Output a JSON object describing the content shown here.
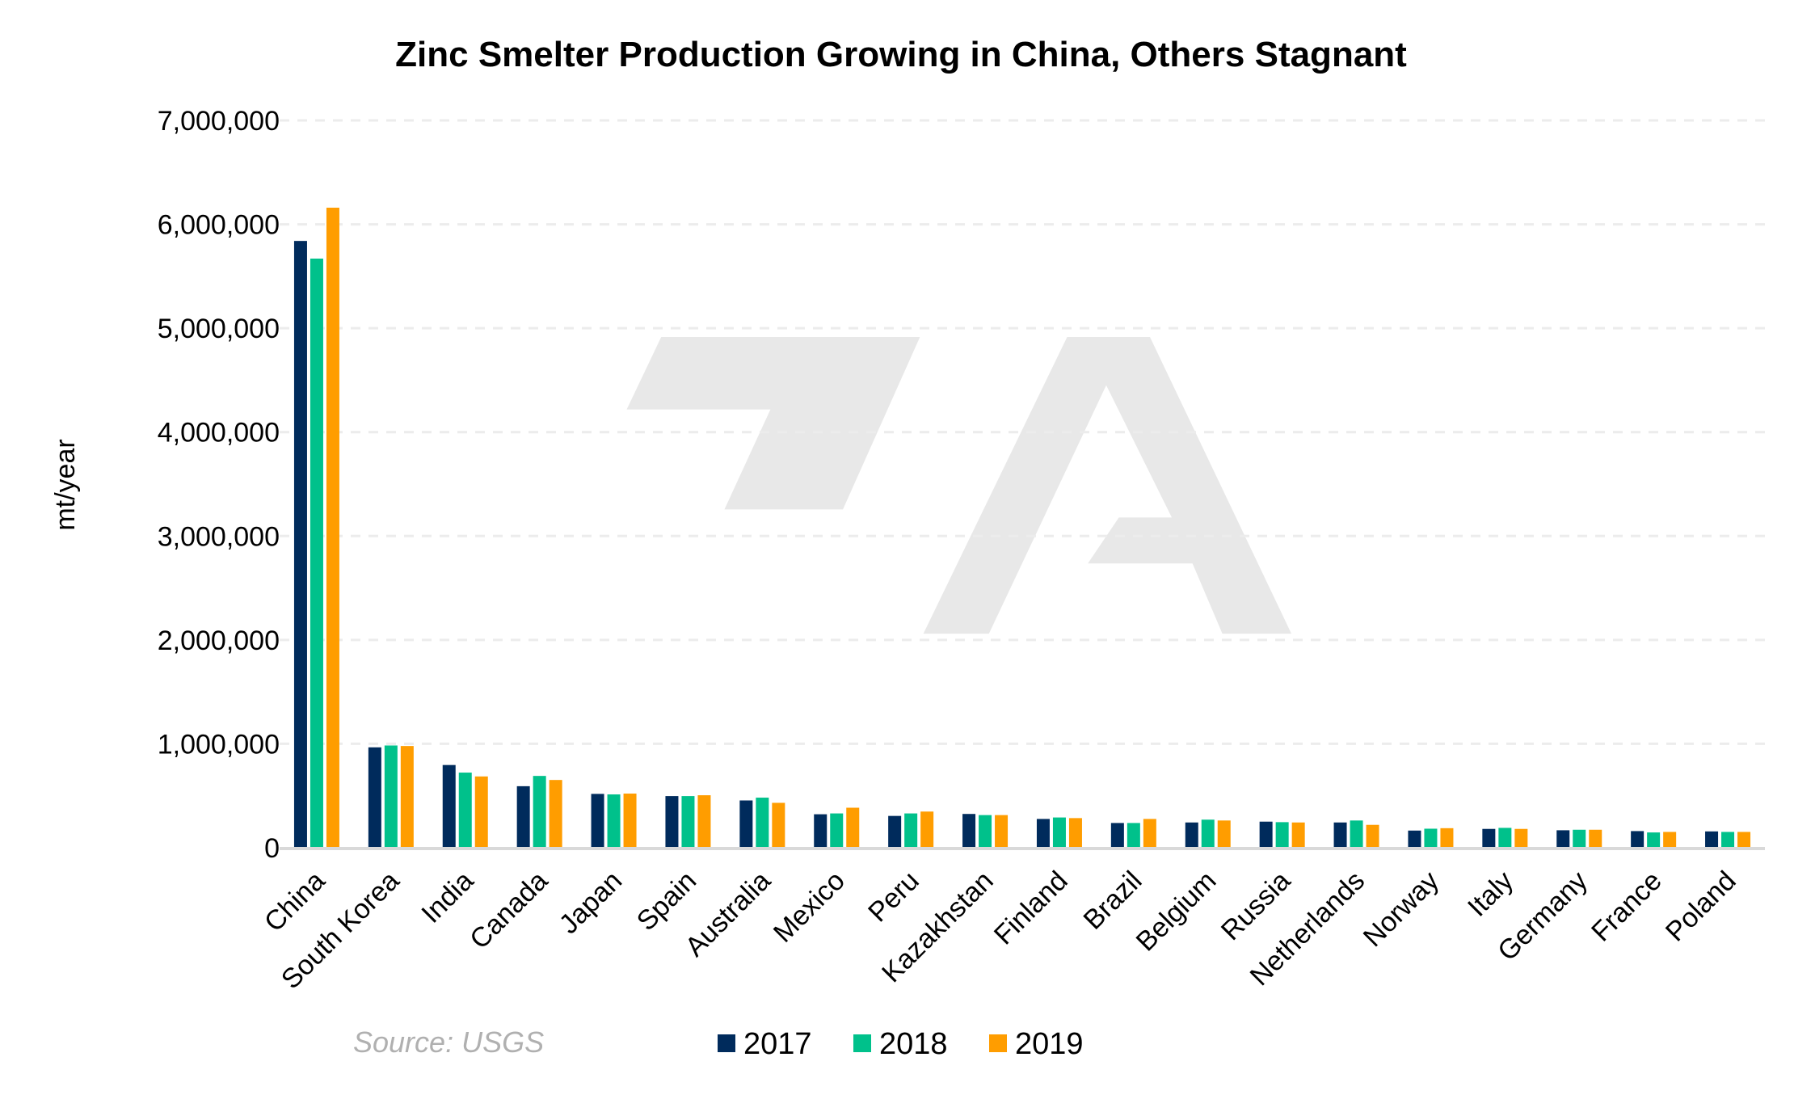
{
  "chart_data": {
    "type": "bar",
    "title": "Zinc Smelter Production Growing in China, Others Stagnant",
    "xlabel": "",
    "ylabel": "mt/year",
    "ylim": [
      0,
      7000000
    ],
    "yticks": [
      0,
      1000000,
      2000000,
      3000000,
      4000000,
      5000000,
      6000000,
      7000000
    ],
    "ytick_labels": [
      "0",
      "1,000,000",
      "2,000,000",
      "3,000,000",
      "4,000,000",
      "5,000,000",
      "6,000,000",
      "7,000,000"
    ],
    "grid": "horizontal dashed",
    "legend_position": "bottom",
    "categories": [
      "China",
      "South Korea",
      "India",
      "Canada",
      "Japan",
      "Spain",
      "Australia",
      "Mexico",
      "Peru",
      "Kazakhstan",
      "Finland",
      "Brazil",
      "Belgium",
      "Russia",
      "Netherlands",
      "Norway",
      "Italy",
      "Germany",
      "France",
      "Poland"
    ],
    "series": [
      {
        "name": "2017",
        "color": "#002b5c",
        "values": [
          5840000,
          966000,
          796000,
          592000,
          518000,
          497000,
          455000,
          322000,
          306000,
          325000,
          277000,
          238000,
          243000,
          251000,
          243000,
          165000,
          181000,
          168000,
          160000,
          157000
        ]
      },
      {
        "name": "2018",
        "color": "#00c18b",
        "values": [
          5670000,
          984000,
          723000,
          691000,
          513000,
          497000,
          482000,
          330000,
          330000,
          314000,
          291000,
          238000,
          270000,
          246000,
          262000,
          183000,
          191000,
          173000,
          147000,
          152000
        ]
      },
      {
        "name": "2019",
        "color": "#ff9d00",
        "values": [
          6160000,
          979000,
          686000,
          652000,
          521000,
          505000,
          432000,
          385000,
          348000,
          314000,
          285000,
          277000,
          262000,
          243000,
          220000,
          188000,
          181000,
          173000,
          152000,
          152000
        ]
      }
    ],
    "source": "Source: USGS"
  }
}
